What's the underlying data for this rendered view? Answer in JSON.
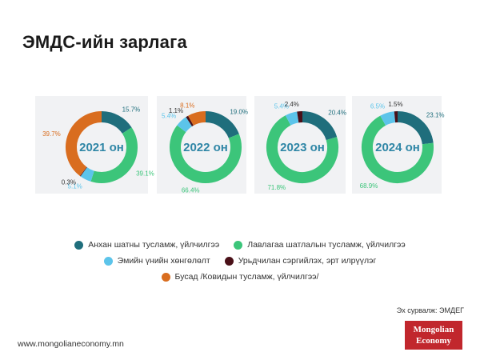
{
  "title": "ЭМДС-ийн зарлага",
  "colors": {
    "primary": "#1f6e7c",
    "secondary": "#3cc57a",
    "medicine": "#5cc4ea",
    "early": "#4a1018",
    "other": "#d96d1f"
  },
  "chart_data": {
    "type": "donut",
    "categories": [
      "Анхан шатны тусламж, үйлчилгээ",
      "Лавлагаа шатлалын тусламж, үйлчилгээ",
      "Эмийн үнийн хөнгөлөлт",
      "Урьдчилан сэргийлэх, эрт илрүүлэг",
      "Бусад /Ковидын тусламж, үйлчилгээ/"
    ],
    "charts": [
      {
        "center_label": "2021 он",
        "values": [
          15.7,
          39.1,
          5.1,
          0.3,
          39.7
        ],
        "labels": [
          "15.7%",
          "39.1%",
          "5.1%",
          "0.3%",
          "39.7%"
        ]
      },
      {
        "center_label": "2022 он",
        "values": [
          19.0,
          66.4,
          5.4,
          1.1,
          8.1
        ],
        "labels": [
          "19.0%",
          "66.4%",
          "5.4%",
          "1.1%",
          "8.1%"
        ]
      },
      {
        "center_label": "2023 он",
        "values": [
          20.4,
          71.8,
          5.4,
          2.4,
          0
        ],
        "labels": [
          "20.4%",
          "71.8%",
          "5.4%",
          "2.4%",
          ""
        ]
      },
      {
        "center_label": "2024 он",
        "values": [
          23.1,
          68.9,
          6.5,
          1.5,
          0
        ],
        "labels": [
          "23.1%",
          "68.9%",
          "6.5%",
          "1.5%",
          ""
        ]
      }
    ]
  },
  "legend": {
    "row1": [
      "Анхан шатны тусламж, үйлчилгээ",
      "Лавлагаа шатлалын тусламж, үйлчилгээ"
    ],
    "row2": [
      "Эмийн үнийн хөнгөлөлт",
      "Урьдчилан сэргийлэх, эрт илрүүлэг"
    ],
    "row3": [
      "Бусад /Ковидын тусламж, үйлчилгээ/"
    ]
  },
  "source": "Эх сурвалж: ЭМДЕГ",
  "footer_url": "www.mongolianeconomy.mn",
  "logo": {
    "line1": "Mongolian",
    "line2": "Economy"
  }
}
